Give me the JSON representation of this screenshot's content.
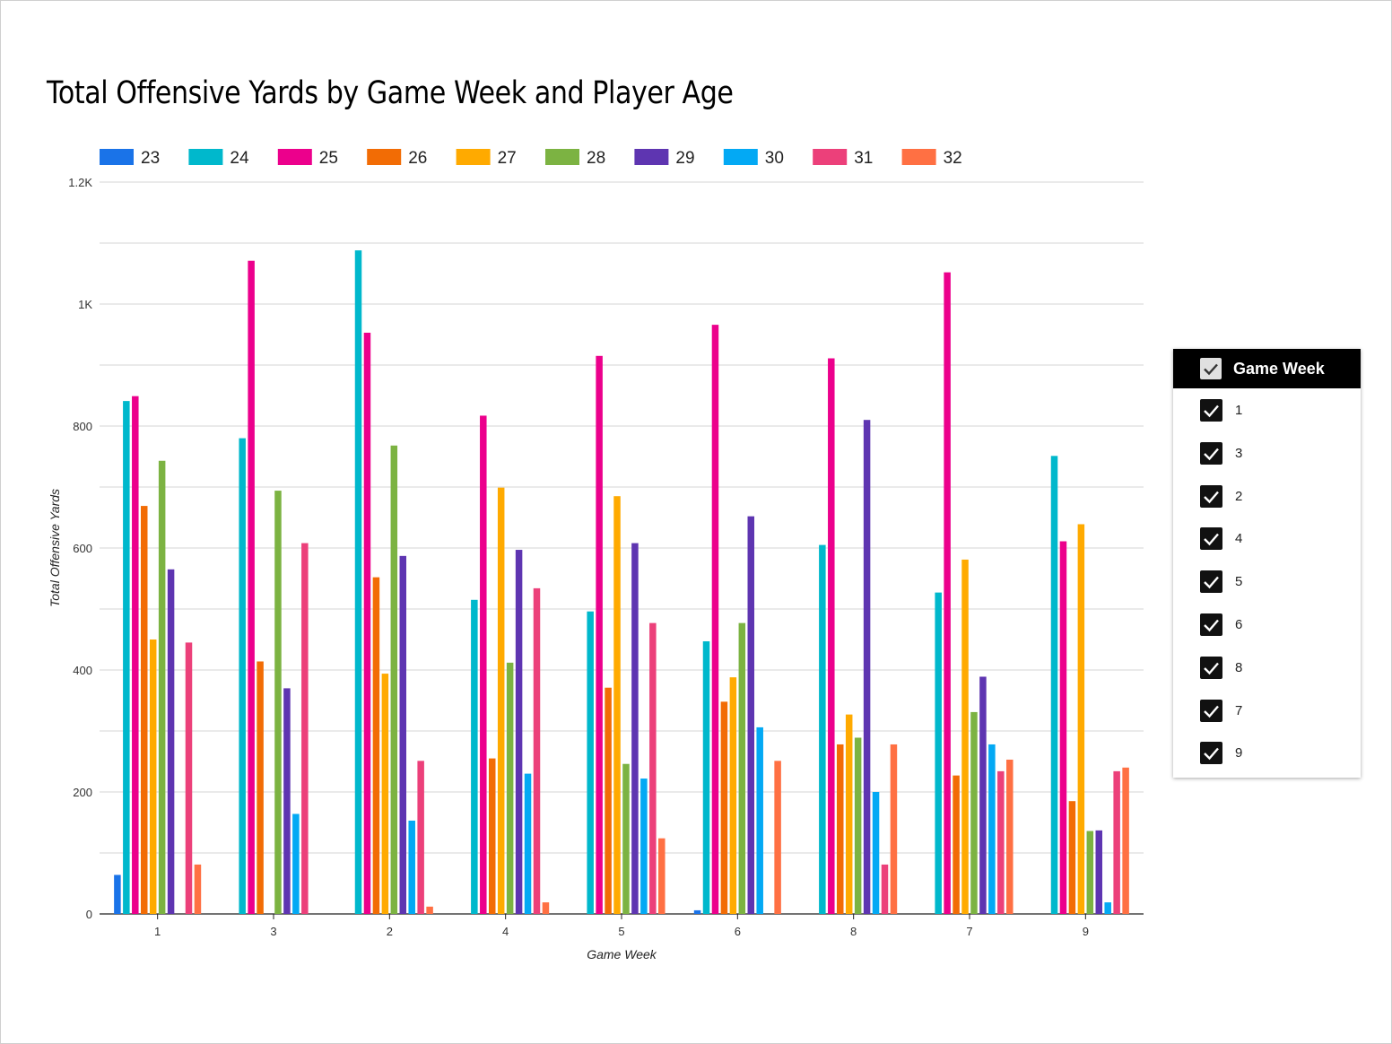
{
  "chart_data": {
    "type": "bar",
    "title": "Total Offensive Yards by Game Week and Player Age",
    "xlabel": "Game Week",
    "ylabel": "Total Offensive Yards",
    "ylim": [
      0,
      1200
    ],
    "yticks": [
      "0",
      "200",
      "400",
      "600",
      "800",
      "1K",
      "1.2K"
    ],
    "ytick_values": [
      0,
      200,
      400,
      600,
      800,
      1000,
      1200
    ],
    "grid": true,
    "legend_position": "top",
    "categories": [
      "1",
      "3",
      "2",
      "4",
      "5",
      "6",
      "8",
      "7",
      "9"
    ],
    "series": [
      {
        "name": "23",
        "color": "#1a73e8",
        "values": [
          64,
          0,
          0,
          0,
          0,
          6,
          0,
          0,
          0
        ]
      },
      {
        "name": "24",
        "color": "#00b8cc",
        "values": [
          841,
          780,
          1088,
          515,
          496,
          447,
          605,
          527,
          751
        ]
      },
      {
        "name": "25",
        "color": "#ec008c",
        "values": [
          849,
          1071,
          953,
          817,
          915,
          966,
          911,
          1052,
          611
        ]
      },
      {
        "name": "26",
        "color": "#f26c05",
        "values": [
          669,
          414,
          552,
          255,
          371,
          348,
          278,
          227,
          185
        ]
      },
      {
        "name": "27",
        "color": "#ffaa00",
        "values": [
          450,
          0,
          394,
          699,
          685,
          388,
          327,
          581,
          639
        ]
      },
      {
        "name": "28",
        "color": "#7cb342",
        "values": [
          743,
          694,
          768,
          412,
          246,
          477,
          289,
          331,
          136
        ]
      },
      {
        "name": "29",
        "color": "#5e35b1",
        "values": [
          565,
          370,
          587,
          597,
          608,
          652,
          810,
          389,
          137
        ]
      },
      {
        "name": "30",
        "color": "#03a9f4",
        "values": [
          0,
          164,
          153,
          230,
          222,
          306,
          200,
          278,
          19
        ]
      },
      {
        "name": "31",
        "color": "#ec407a",
        "values": [
          445,
          608,
          251,
          534,
          477,
          0,
          81,
          234,
          234
        ]
      },
      {
        "name": "32",
        "color": "#ff7043",
        "values": [
          81,
          0,
          12,
          19,
          124,
          251,
          278,
          253,
          240
        ]
      }
    ]
  },
  "filter": {
    "header": "Game Week",
    "items": [
      "1",
      "3",
      "2",
      "4",
      "5",
      "6",
      "8",
      "7",
      "9"
    ]
  }
}
